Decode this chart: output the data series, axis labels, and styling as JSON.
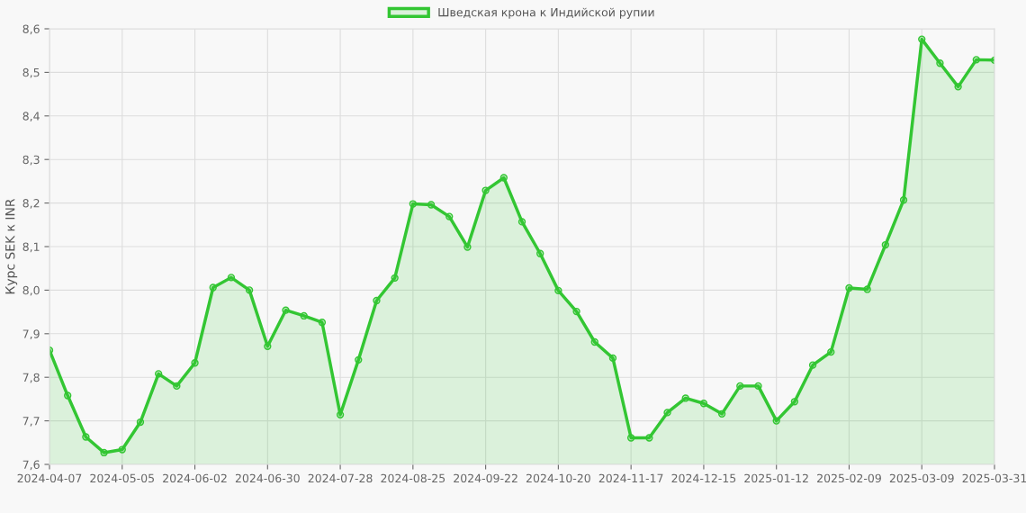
{
  "chart_data": {
    "type": "area",
    "ylabel": "Курс SEK к INR",
    "categories": [
      "2024-04-07",
      null,
      null,
      null,
      "2024-05-05",
      null,
      null,
      null,
      "2024-06-02",
      null,
      null,
      null,
      "2024-06-30",
      null,
      null,
      null,
      "2024-07-28",
      null,
      null,
      null,
      "2024-08-25",
      null,
      null,
      null,
      "2024-09-22",
      null,
      null,
      null,
      "2024-10-20",
      null,
      null,
      null,
      "2024-11-17",
      null,
      null,
      null,
      "2024-12-15",
      null,
      null,
      null,
      "2025-01-12",
      null,
      null,
      null,
      "2025-02-09",
      null,
      null,
      null,
      "2025-03-09",
      null,
      null,
      null,
      "2025-03-31"
    ],
    "series": [
      {
        "name": "Шведская крона к Индийской рупии",
        "color": "#33c633",
        "values": [
          7.862,
          7.758,
          7.663,
          7.627,
          7.634,
          7.697,
          7.808,
          7.78,
          7.833,
          8.006,
          8.029,
          8.0,
          7.871,
          7.954,
          7.941,
          7.926,
          7.714,
          7.84,
          7.976,
          8.028,
          8.198,
          8.196,
          8.169,
          8.099,
          8.229,
          8.258,
          8.157,
          8.084,
          7.999,
          7.951,
          7.881,
          7.844,
          7.661,
          7.661,
          7.719,
          7.752,
          7.74,
          7.716,
          7.78,
          7.78,
          7.7,
          7.744,
          7.828,
          7.858,
          8.005,
          8.002,
          8.104,
          8.207,
          8.576,
          8.521,
          8.467,
          8.529,
          8.528
        ]
      }
    ],
    "ylim": [
      7.6,
      8.6
    ],
    "yticks": [
      {
        "value": 7.6,
        "label": "7,6"
      },
      {
        "value": 7.7,
        "label": "7,7"
      },
      {
        "value": 7.8,
        "label": "7,8"
      },
      {
        "value": 7.9,
        "label": "7,9"
      },
      {
        "value": 8.0,
        "label": "8,0"
      },
      {
        "value": 8.1,
        "label": "8,1"
      },
      {
        "value": 8.2,
        "label": "8,2"
      },
      {
        "value": 8.3,
        "label": "8,3"
      },
      {
        "value": 8.4,
        "label": "8,4"
      },
      {
        "value": 8.5,
        "label": "8,5"
      },
      {
        "value": 8.6,
        "label": "8,6"
      }
    ],
    "grid": true,
    "legend": "top",
    "marker": "circle",
    "line_style": "solid"
  }
}
